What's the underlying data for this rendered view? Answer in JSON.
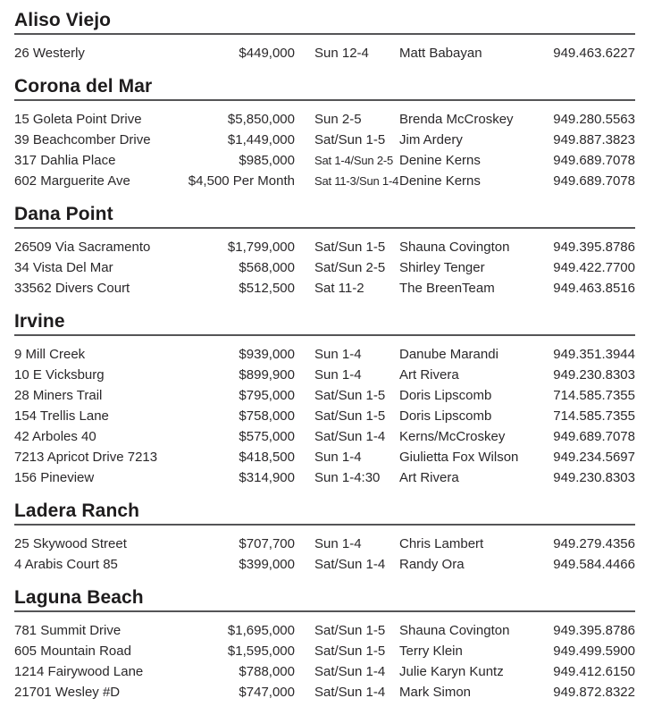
{
  "palette": {
    "text_color": "#2a282a",
    "header_color": "#1e1c1d",
    "rule_color": "#555557",
    "background": "#ffffff"
  },
  "sections": [
    {
      "city": "Aliso Viejo",
      "listings": [
        {
          "address": "26 Westerly",
          "price": "$449,000",
          "time": "Sun 12-4",
          "agent": "Matt Babayan",
          "phone": "949.463.6227"
        }
      ]
    },
    {
      "city": "Corona del Mar",
      "listings": [
        {
          "address": "15 Goleta Point Drive",
          "price": "$5,850,000",
          "time": "Sun 2-5",
          "agent": "Brenda McCroskey",
          "phone": "949.280.5563"
        },
        {
          "address": "39 Beachcomber Drive",
          "price": "$1,449,000",
          "time": "Sat/Sun 1-5",
          "agent": "Jim Ardery",
          "phone": "949.887.3823"
        },
        {
          "address": "317 Dahlia Place",
          "price": "$985,000",
          "time": "Sat 1-4/Sun 2-5",
          "agent": "Denine Kerns",
          "phone": "949.689.7078"
        },
        {
          "address": "602 Marguerite Ave",
          "price": "$4,500 Per Month",
          "time": "Sat 11-3/Sun 1-4",
          "agent": "Denine Kerns",
          "phone": "949.689.7078"
        }
      ]
    },
    {
      "city": "Dana Point",
      "listings": [
        {
          "address": "26509 Via Sacramento",
          "price": "$1,799,000",
          "time": "Sat/Sun 1-5",
          "agent": "Shauna Covington",
          "phone": "949.395.8786"
        },
        {
          "address": "34 Vista Del Mar",
          "price": "$568,000",
          "time": "Sat/Sun 2-5",
          "agent": "Shirley Tenger",
          "phone": "949.422.7700"
        },
        {
          "address": "33562 Divers Court",
          "price": "$512,500",
          "time": "Sat 11-2",
          "agent": "The BreenTeam",
          "phone": "949.463.8516"
        }
      ]
    },
    {
      "city": "Irvine",
      "listings": [
        {
          "address": "9 Mill Creek",
          "price": "$939,000",
          "time": "Sun 1-4",
          "agent": "Danube Marandi",
          "phone": "949.351.3944"
        },
        {
          "address": "10 E Vicksburg",
          "price": "$899,900",
          "time": "Sun 1-4",
          "agent": "Art Rivera",
          "phone": "949.230.8303"
        },
        {
          "address": "28 Miners Trail",
          "price": "$795,000",
          "time": "Sat/Sun 1-5",
          "agent": "Doris Lipscomb",
          "phone": "714.585.7355"
        },
        {
          "address": "154 Trellis Lane",
          "price": "$758,000",
          "time": "Sat/Sun 1-5",
          "agent": "Doris Lipscomb",
          "phone": "714.585.7355"
        },
        {
          "address": "42 Arboles 40",
          "price": "$575,000",
          "time": "Sat/Sun 1-4",
          "agent": "Kerns/McCroskey",
          "phone": "949.689.7078"
        },
        {
          "address": "7213 Apricot Drive 7213",
          "price": "$418,500",
          "time": "Sun 1-4",
          "agent": "Giulietta Fox Wilson",
          "phone": "949.234.5697"
        },
        {
          "address": "156 Pineview",
          "price": "$314,900",
          "time": "Sun 1-4:30",
          "agent": "Art Rivera",
          "phone": "949.230.8303"
        }
      ]
    },
    {
      "city": "Ladera Ranch",
      "listings": [
        {
          "address": "25 Skywood Street",
          "price": "$707,700",
          "time": "Sun 1-4",
          "agent": "Chris Lambert",
          "phone": "949.279.4356"
        },
        {
          "address": "4 Arabis Court 85",
          "price": "$399,000",
          "time": "Sat/Sun 1-4",
          "agent": "Randy Ora",
          "phone": "949.584.4466"
        }
      ]
    },
    {
      "city": "Laguna Beach",
      "listings": [
        {
          "address": "781 Summit Drive",
          "price": "$1,695,000",
          "time": "Sat/Sun 1-5",
          "agent": "Shauna Covington",
          "phone": "949.395.8786"
        },
        {
          "address": "605 Mountain Road",
          "price": "$1,595,000",
          "time": "Sat/Sun 1-5",
          "agent": "Terry Klein",
          "phone": "949.499.5900"
        },
        {
          "address": "1214 Fairywood Lane",
          "price": "$788,000",
          "time": "Sat/Sun 1-4",
          "agent": "Julie Karyn Kuntz",
          "phone": "949.412.6150"
        },
        {
          "address": "21701 Wesley #D",
          "price": "$747,000",
          "time": "Sat/Sun 1-4",
          "agent": "Mark Simon",
          "phone": "949.872.8322"
        }
      ]
    }
  ]
}
